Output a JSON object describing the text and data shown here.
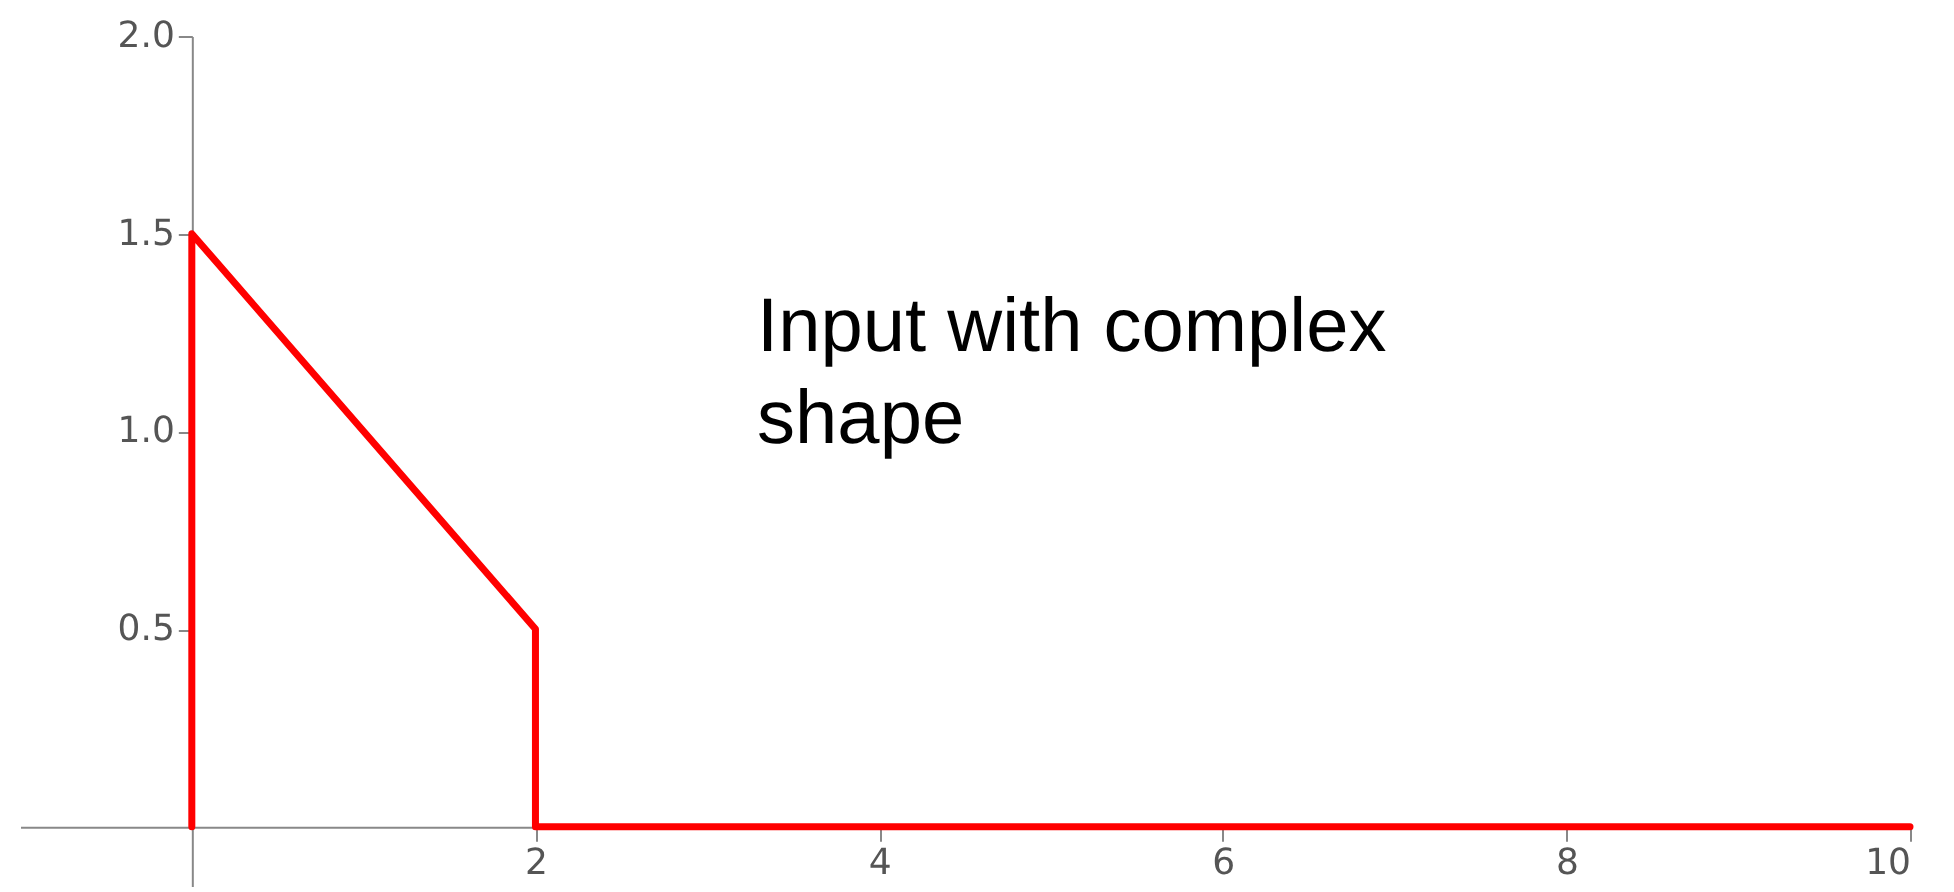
{
  "chart_data": {
    "type": "line",
    "x": [
      0,
      0,
      2,
      2,
      10
    ],
    "series": [
      {
        "color": "#ff0000",
        "values": [
          0,
          1.5,
          0.5,
          0,
          0
        ]
      }
    ],
    "xlim": [
      -1,
      10
    ],
    "ylim": [
      -0.15,
      2
    ],
    "xticks": [
      2,
      4,
      6,
      8,
      10
    ],
    "yticks": [
      0.5,
      {
        "value": 1,
        "label": "1.0"
      },
      1.5,
      {
        "value": 2,
        "label": "2.0"
      }
    ],
    "grid": false,
    "marker": "none",
    "line_style": "solid",
    "annotations": [
      "Input with complex shape"
    ]
  }
}
